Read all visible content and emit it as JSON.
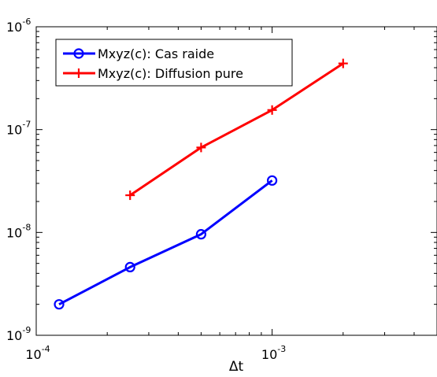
{
  "chart_data": {
    "type": "line",
    "x_scale": "log",
    "y_scale": "log",
    "xlabel": "Δt",
    "ylabel": "",
    "xlim": [
      0.0001,
      0.005
    ],
    "ylim": [
      1e-09,
      1e-06
    ],
    "x_ticks": [
      {
        "value": 0.0001,
        "base": "10",
        "exp": "-4"
      },
      {
        "value": 0.001,
        "base": "10",
        "exp": "-3"
      }
    ],
    "y_ticks": [
      {
        "value": 1e-09,
        "base": "10",
        "exp": "-9"
      },
      {
        "value": 1e-08,
        "base": "10",
        "exp": "-8"
      },
      {
        "value": 1e-07,
        "base": "10",
        "exp": "-7"
      },
      {
        "value": 1e-06,
        "base": "10",
        "exp": "-6"
      }
    ],
    "grid": false,
    "legend_position": "top-left",
    "series": [
      {
        "name": "Mxyz(c): Cas raide",
        "color": "#0000ff",
        "marker": "circle",
        "x": [
          0.000125,
          0.00025,
          0.0005,
          0.001
        ],
        "y": [
          2e-09,
          4.6e-09,
          9.6e-09,
          3.2e-08
        ]
      },
      {
        "name": "Mxyz(c): Diffusion pure",
        "color": "#ff0000",
        "marker": "plus",
        "x": [
          0.00025,
          0.0005,
          0.001,
          0.002
        ],
        "y": [
          2.3e-08,
          6.7e-08,
          1.55e-07,
          4.4e-07
        ]
      }
    ]
  }
}
